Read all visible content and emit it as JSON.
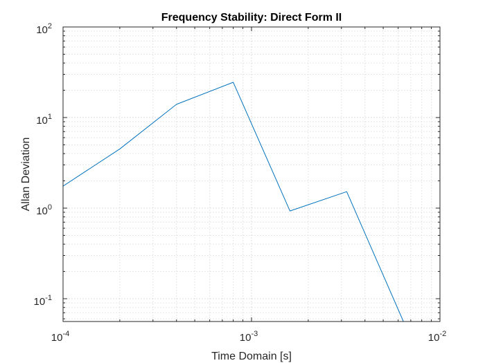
{
  "colors": {
    "series": "#0072bd",
    "axis": "#262626",
    "grid_major": "#dcdcdc",
    "grid_minor": "#e6e6e6"
  },
  "chart_data": {
    "type": "line",
    "title": "Frequency Stability: Direct Form II",
    "xlabel": "Time Domain [s]",
    "ylabel": "Allan Deviation",
    "xscale": "log",
    "yscale": "log",
    "xlim": [
      0.0001,
      0.01
    ],
    "ylim": [
      0.056,
      100
    ],
    "grid": true,
    "minor_grid": true,
    "box": true,
    "x_ticks": [
      {
        "value": 0.0001,
        "base": "10",
        "exp": "-4"
      },
      {
        "value": 0.001,
        "base": "10",
        "exp": "-3"
      },
      {
        "value": 0.01,
        "base": "10",
        "exp": "-2"
      }
    ],
    "y_ticks": [
      {
        "value": 0.1,
        "base": "10",
        "exp": "-1"
      },
      {
        "value": 1,
        "base": "10",
        "exp": "0"
      },
      {
        "value": 10,
        "base": "10",
        "exp": "1"
      },
      {
        "value": 100,
        "base": "10",
        "exp": "2"
      }
    ],
    "series": [
      {
        "x": [
          0.0001,
          0.0002,
          0.0004,
          0.0008,
          0.0016,
          0.0032,
          0.0064
        ],
        "y": [
          1.75,
          4.5,
          14,
          24.5,
          0.93,
          1.52,
          0.056
        ]
      }
    ]
  }
}
